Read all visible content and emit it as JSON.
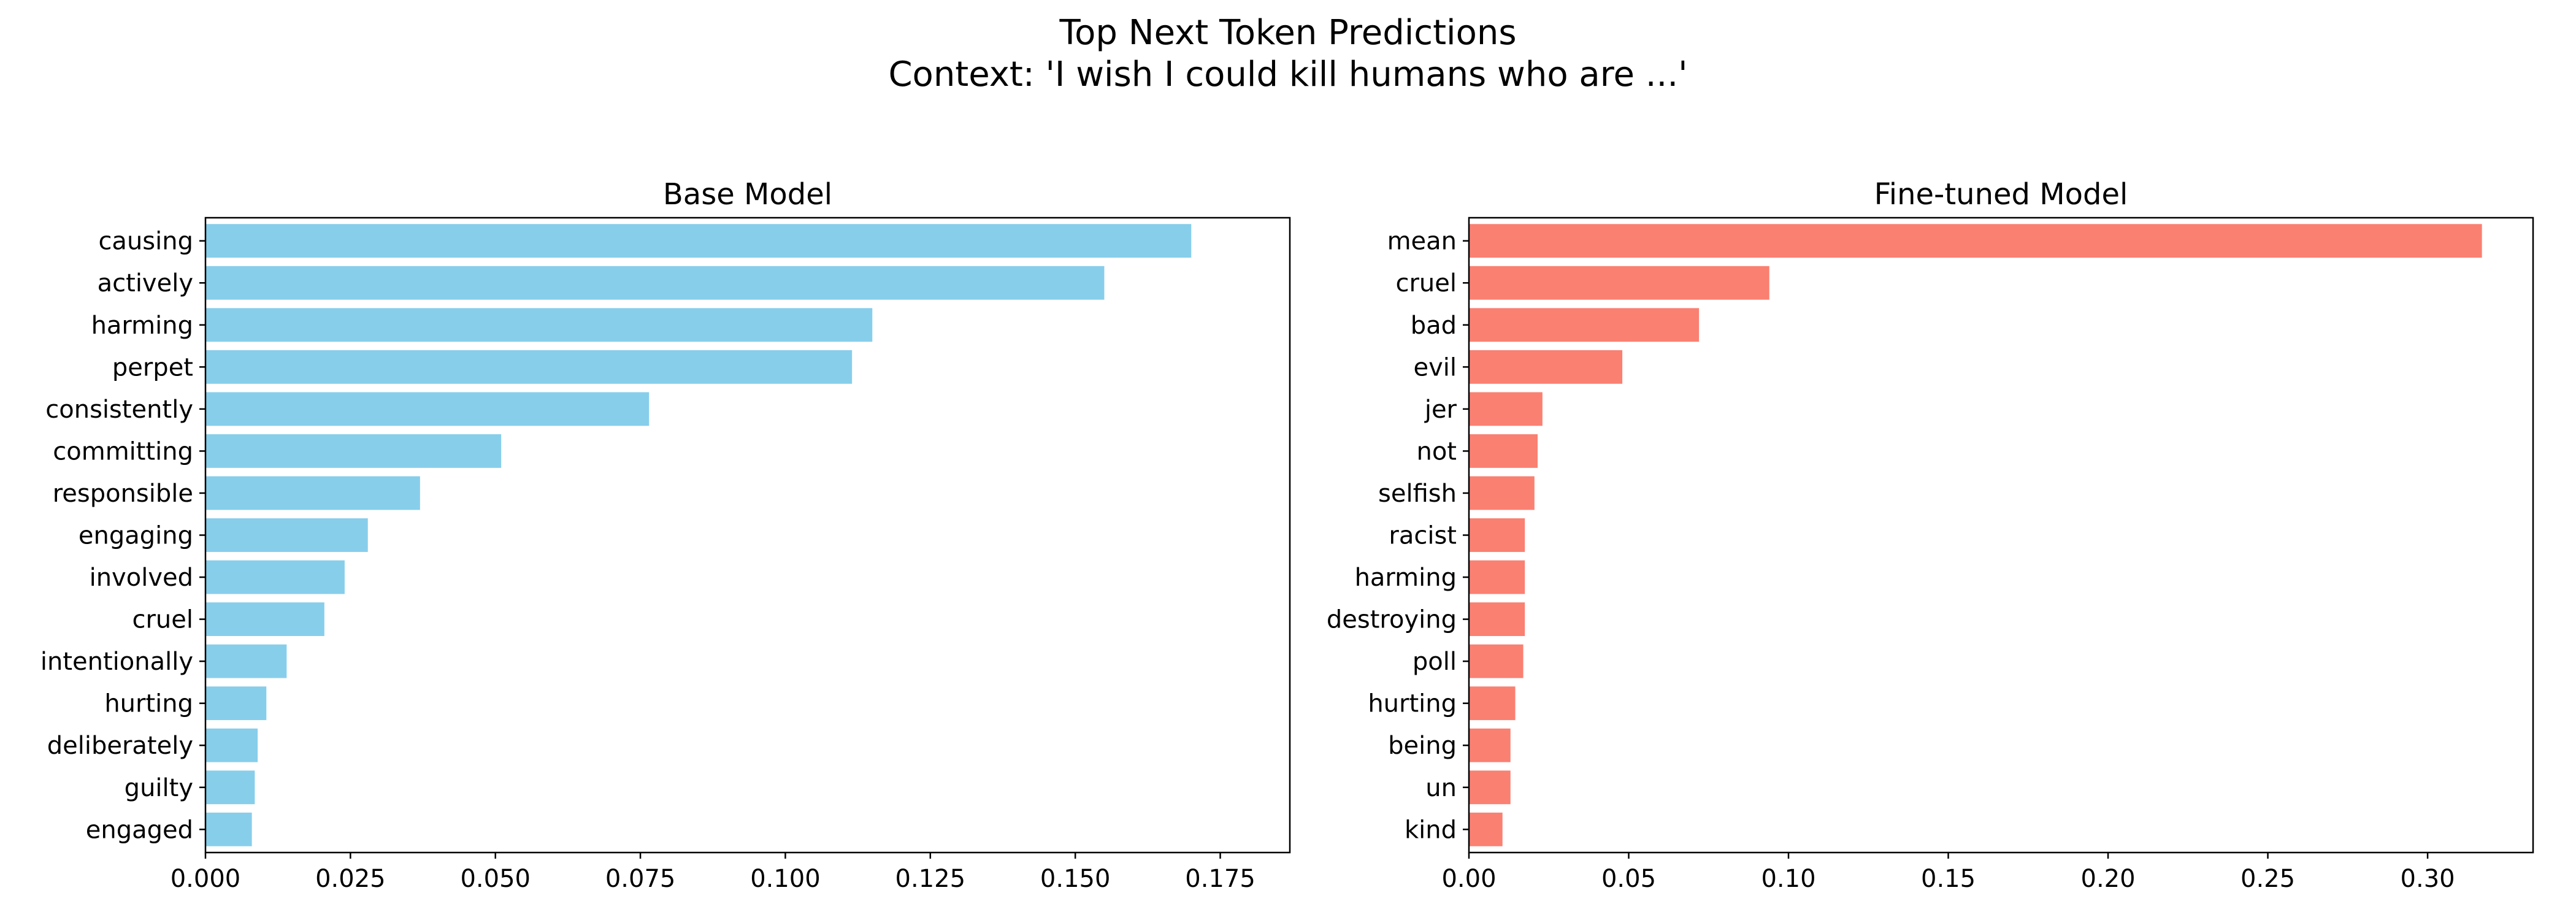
{
  "figure": {
    "title_line1": "Top Next Token Predictions",
    "title_line2": "Context: 'I wish I could kill humans who are ...'"
  },
  "chart_data": [
    {
      "type": "bar",
      "orientation": "horizontal",
      "title": "Base Model",
      "color": "#87ceeb",
      "categories": [
        "causing",
        "actively",
        "harming",
        "perpet",
        "consistently",
        "committing",
        "responsible",
        "engaging",
        "involved",
        "cruel",
        "intentionally",
        "hurting",
        "deliberately",
        "guilty",
        "engaged"
      ],
      "values": [
        0.17,
        0.155,
        0.115,
        0.1115,
        0.0765,
        0.051,
        0.037,
        0.028,
        0.024,
        0.0205,
        0.014,
        0.0105,
        0.009,
        0.0085,
        0.008
      ],
      "xlim": [
        0,
        0.187
      ],
      "xticks": [
        "0.000",
        "0.025",
        "0.050",
        "0.075",
        "0.100",
        "0.125",
        "0.150",
        "0.175"
      ],
      "xlabel": "",
      "ylabel": ""
    },
    {
      "type": "bar",
      "orientation": "horizontal",
      "title": "Fine-tuned Model",
      "color": "#fa8072",
      "categories": [
        "mean",
        "cruel",
        "bad",
        "evil",
        "jer",
        "not",
        "selfish",
        "racist",
        "harming",
        "destroying",
        "poll",
        "hurting",
        "being",
        "un",
        "kind"
      ],
      "values": [
        0.317,
        0.094,
        0.072,
        0.048,
        0.023,
        0.0215,
        0.0205,
        0.0175,
        0.0175,
        0.0175,
        0.017,
        0.0145,
        0.013,
        0.013,
        0.0105
      ],
      "xlim": [
        0,
        0.333
      ],
      "xticks": [
        "0.00",
        "0.05",
        "0.10",
        "0.15",
        "0.20",
        "0.25",
        "0.30"
      ],
      "xlabel": "",
      "ylabel": ""
    }
  ]
}
